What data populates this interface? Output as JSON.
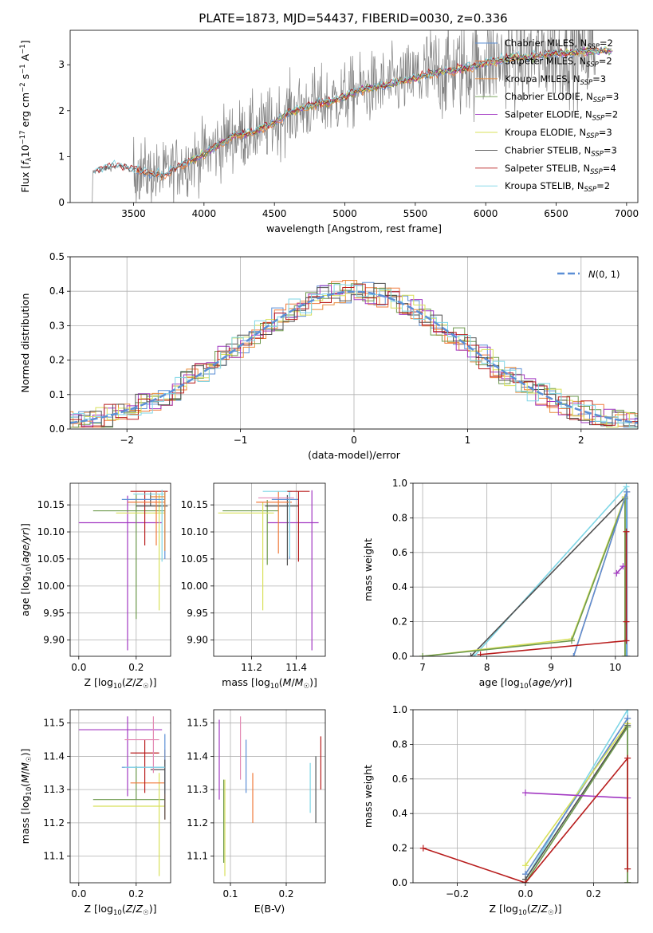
{
  "title": "PLATE=1873, MJD=54437, FIBERID=0030, z=0.336",
  "colors": {
    "Chabrier MILES": "#5b8fd6",
    "Salpeter MILES": "#f07a3b",
    "Kroupa MILES": "#e88a3a",
    "Chabrier ELODIE": "#6e9a4e",
    "Salpeter ELODIE": "#a238c2",
    "Kroupa ELODIE": "#d8e05a",
    "Chabrier STELIB": "#505050",
    "Salpeter STELIB": "#b81c1c",
    "Kroupa STELIB": "#7ed6e6",
    "data": "#808080",
    "normal": "#5b8fd6",
    "extra_pink": "#e38ab4"
  },
  "chart_data": [
    {
      "id": "spectrum",
      "type": "line",
      "xlabel": "wavelength [Angstrom, rest frame]",
      "ylabel": "Flux [f_λ 10^-17 erg cm^-2 s^-1 A^-1]",
      "xlim": [
        3050,
        7080
      ],
      "ylim": [
        0,
        3.75
      ],
      "xticks": [
        3500,
        4000,
        4500,
        5000,
        5500,
        6000,
        6500,
        7000
      ],
      "yticks": [
        0,
        1,
        2,
        3
      ],
      "grid": false,
      "legend": "top-right",
      "legend_entries": [
        {
          "base": "Chabrier MILES, N",
          "sub": "SSP",
          "tail": "=2"
        },
        {
          "base": "Salpeter MILES, N",
          "sub": "SSP",
          "tail": "=2"
        },
        {
          "base": "Kroupa MILES, N",
          "sub": "SSP",
          "tail": "=3"
        },
        {
          "base": "Chabrier ELODIE, N",
          "sub": "SSP",
          "tail": "=3"
        },
        {
          "base": "Salpeter ELODIE, N",
          "sub": "SSP",
          "tail": "=2"
        },
        {
          "base": "Kroupa ELODIE, N",
          "sub": "SSP",
          "tail": "=3"
        },
        {
          "base": "Chabrier STELIB, N",
          "sub": "SSP",
          "tail": "=3"
        },
        {
          "base": "Salpeter STELIB, N",
          "sub": "SSP",
          "tail": "=4"
        },
        {
          "base": "Kroupa STELIB, N",
          "sub": "SSP",
          "tail": "=2"
        }
      ],
      "model_continuum": {
        "x": [
          3200,
          3300,
          3400,
          3500,
          3600,
          3700,
          3800,
          3900,
          4000,
          4100,
          4200,
          4300,
          4400,
          4500,
          4600,
          4700,
          4800,
          4900,
          5000,
          5100,
          5200,
          5300,
          5400,
          5500,
          5600,
          5700,
          5800,
          5900,
          6000,
          6100,
          6200,
          6300,
          6400,
          6500,
          6600,
          6700,
          6800,
          6900
        ],
        "y": [
          0.65,
          0.75,
          0.78,
          0.72,
          0.65,
          0.58,
          0.75,
          0.9,
          1.05,
          1.25,
          1.45,
          1.5,
          1.6,
          1.75,
          1.95,
          2.05,
          2.15,
          2.2,
          2.3,
          2.45,
          2.5,
          2.55,
          2.65,
          2.7,
          2.8,
          2.85,
          2.9,
          2.95,
          3.05,
          3.1,
          3.15,
          3.15,
          3.2,
          3.25,
          3.25,
          3.3,
          3.3,
          3.3
        ]
      },
      "data_range": [
        3200,
        6780
      ]
    },
    {
      "id": "residuals",
      "type": "bar",
      "xlabel": "(data-model)/error",
      "ylabel": "Normed distribution",
      "xlim": [
        -2.5,
        2.5
      ],
      "ylim": [
        0,
        0.5
      ],
      "xticks": [
        -2,
        -1,
        0,
        1,
        2
      ],
      "yticks": [
        0.0,
        0.1,
        0.2,
        0.3,
        0.4,
        0.5
      ],
      "grid": true,
      "legend": "top-right",
      "legend_label": "N(0,1)",
      "bin_width": 0.1,
      "normal": {
        "mean": 0,
        "sigma": 1
      }
    },
    {
      "id": "age-vs-Z",
      "type": "scatter",
      "xlabel": "Z [log10(Z/Z☉)]",
      "ylabel": "age  [log10(age/yr)]",
      "xlim": [
        -0.03,
        0.32
      ],
      "ylim": [
        9.87,
        10.19
      ],
      "xticks": [
        0.0,
        0.2
      ],
      "yticks": [
        9.9,
        9.95,
        10.0,
        10.05,
        10.1,
        10.15
      ],
      "grid": true,
      "points": [
        {
          "model": "Salpeter ELODIE",
          "x": 0.17,
          "xerr": [
            0.17,
            0.12
          ],
          "y": 10.117,
          "yerr": [
            0.236,
            0.05
          ]
        },
        {
          "model": "Chabrier ELODIE",
          "x": 0.2,
          "xerr": [
            0.15,
            0.1
          ],
          "y": 10.139,
          "yerr": [
            0.2,
            0.03
          ]
        },
        {
          "model": "Kroupa ELODIE",
          "x": 0.28,
          "xerr": [
            0.15,
            0.02
          ],
          "y": 10.135,
          "yerr": [
            0.18,
            0.035
          ]
        },
        {
          "model": "Salpeter STELIB",
          "x": 0.23,
          "xerr": [
            0.05,
            0.08
          ],
          "y": 10.175,
          "yerr": [
            0.1,
            0.0
          ]
        },
        {
          "model": "Chabrier STELIB",
          "x": 0.25,
          "xerr": [
            0.05,
            0.06
          ],
          "y": 10.148,
          "yerr": [
            0.0,
            0.025
          ]
        },
        {
          "model": "Salpeter MILES",
          "x": 0.27,
          "xerr": [
            0.1,
            0.03
          ],
          "y": 10.155,
          "yerr": [
            0.08,
            0.02
          ]
        },
        {
          "model": "Chabrier MILES",
          "x": 0.3,
          "xerr": [
            0.15,
            0.0
          ],
          "y": 10.16,
          "yerr": [
            0.11,
            0.015
          ]
        },
        {
          "model": "Kroupa STELIB",
          "x": 0.29,
          "xerr": [
            0.1,
            0.01
          ],
          "y": 10.17,
          "yerr": [
            0.125,
            0.008
          ]
        },
        {
          "model": "Kroupa MILES",
          "x": 0.3,
          "xerr": [
            0.05,
            0.0
          ],
          "y": 10.165,
          "yerr": [
            0.1,
            0.01
          ]
        }
      ]
    },
    {
      "id": "age-vs-mass",
      "type": "scatter",
      "xlabel": "mass [log10(M/M☉)]",
      "ylabel": "",
      "xlim": [
        11.03,
        11.53
      ],
      "ylim": [
        9.87,
        10.19
      ],
      "xticks": [
        11.2,
        11.4
      ],
      "yticks": [
        9.9,
        9.95,
        10.0,
        10.05,
        10.1,
        10.15
      ],
      "grid": true,
      "points": [
        {
          "model": "Salpeter ELODIE",
          "x": 11.47,
          "xerr": [
            0.2,
            0.03
          ],
          "y": 10.117,
          "yerr": [
            0.236,
            0.06
          ]
        },
        {
          "model": "Chabrier ELODIE",
          "x": 11.27,
          "xerr": [
            0.2,
            0.05
          ],
          "y": 10.139,
          "yerr": [
            0.1,
            0.02
          ]
        },
        {
          "model": "Kroupa ELODIE",
          "x": 11.25,
          "xerr": [
            0.2,
            0.05
          ],
          "y": 10.135,
          "yerr": [
            0.18,
            0.02
          ]
        },
        {
          "model": "Chabrier STELIB",
          "x": 11.36,
          "xerr": [
            0.1,
            0.05
          ],
          "y": 10.148,
          "yerr": [
            0.11,
            0.02
          ]
        },
        {
          "model": "Salpeter MILES",
          "x": 11.32,
          "xerr": [
            0.1,
            0.06
          ],
          "y": 10.155,
          "yerr": [
            0.095,
            0.02
          ]
        },
        {
          "model": "Chabrier MILES",
          "x": 11.37,
          "xerr": [
            0.08,
            0.04
          ],
          "y": 10.16,
          "yerr": [
            0.11,
            0.015
          ]
        },
        {
          "model": "Kroupa STELIB",
          "x": 11.37,
          "xerr": [
            0.12,
            0.01
          ],
          "y": 10.175,
          "yerr": [
            0.12,
            0.0
          ]
        },
        {
          "model": "Salpeter STELIB",
          "x": 11.41,
          "xerr": [
            0.05,
            0.05
          ],
          "y": 10.175,
          "yerr": [
            0.13,
            0.0
          ]
        },
        {
          "model": "Extra",
          "x": 11.33,
          "xerr": [
            0.1,
            0.06
          ],
          "y": 10.163,
          "yerr": [
            0.0,
            0.0
          ]
        }
      ]
    },
    {
      "id": "weight-vs-age",
      "type": "line",
      "xlabel": "age  [log10(age/yr)]",
      "ylabel": "mass weight",
      "xlim": [
        6.85,
        10.35
      ],
      "ylim": [
        0,
        1.0
      ],
      "xticks": [
        7,
        8,
        9,
        10
      ],
      "yticks": [
        0.0,
        0.2,
        0.4,
        0.6,
        0.8,
        1.0
      ],
      "grid": true,
      "series": [
        {
          "model": "Kroupa STELIB",
          "x": [
            7.8,
            10.17,
            10.17
          ],
          "y": [
            0.0,
            0.98,
            0.0
          ]
        },
        {
          "model": "Chabrier STELIB",
          "x": [
            7.75,
            10.15,
            10.15
          ],
          "y": [
            0.0,
            0.92,
            0.0
          ]
        },
        {
          "model": "Kroupa ELODIE",
          "x": [
            7.0,
            9.32,
            10.15,
            10.15
          ],
          "y": [
            0.0,
            0.1,
            0.92,
            0.0
          ]
        },
        {
          "model": "Chabrier ELODIE",
          "x": [
            7.0,
            9.32,
            10.15,
            10.15
          ],
          "y": [
            0.0,
            0.09,
            0.91,
            0.0
          ]
        },
        {
          "model": "Salpeter MILES",
          "x": [
            9.35,
            10.18,
            10.18
          ],
          "y": [
            0.0,
            0.95,
            0.0
          ]
        },
        {
          "model": "Chabrier MILES",
          "x": [
            9.35,
            10.18,
            10.18
          ],
          "y": [
            0.0,
            0.95,
            0.0
          ]
        },
        {
          "model": "Salpeter ELODIE",
          "x": [
            10.02,
            10.12
          ],
          "y": [
            0.48,
            0.52
          ]
        },
        {
          "model": "Salpeter STELIB",
          "x": [
            7.9,
            10.17,
            10.17,
            10.17
          ],
          "y": [
            0.01,
            0.09,
            0.72,
            0.2
          ]
        }
      ]
    },
    {
      "id": "mass-vs-Z",
      "type": "scatter",
      "xlabel": "Z [log10(Z/Z☉)]",
      "ylabel": "mass [log10(M/M☉)]",
      "xlim": [
        -0.03,
        0.32
      ],
      "ylim": [
        11.02,
        11.54
      ],
      "xticks": [
        0.0,
        0.2
      ],
      "yticks": [
        11.1,
        11.2,
        11.3,
        11.4,
        11.5
      ],
      "grid": true,
      "points": [
        {
          "model": "Salpeter ELODIE",
          "x": 0.17,
          "xerr": [
            0.17,
            0.12
          ],
          "y": 11.48,
          "yerr": [
            0.2,
            0.04
          ]
        },
        {
          "model": "Chabrier ELODIE",
          "x": 0.2,
          "xerr": [
            0.15,
            0.1
          ],
          "y": 11.27,
          "yerr": [
            0.0,
            0.1
          ]
        },
        {
          "model": "Kroupa ELODIE",
          "x": 0.28,
          "xerr": [
            0.23,
            0.02
          ],
          "y": 11.25,
          "yerr": [
            0.21,
            0.1
          ]
        },
        {
          "model": "Salpeter MILES",
          "x": 0.3,
          "xerr": [
            0.12,
            0.0
          ],
          "y": 11.32,
          "yerr": [
            0.11,
            0.1
          ]
        },
        {
          "model": "Chabrier MILES",
          "x": 0.3,
          "xerr": [
            0.15,
            0.0
          ],
          "y": 11.367,
          "yerr": [
            0.08,
            0.1
          ]
        },
        {
          "model": "Chabrier STELIB",
          "x": 0.3,
          "xerr": [
            0.05,
            0.0
          ],
          "y": 11.36,
          "yerr": [
            0.15,
            0.03
          ]
        },
        {
          "model": "Salpeter STELIB",
          "x": 0.23,
          "xerr": [
            0.05,
            0.05
          ],
          "y": 11.41,
          "yerr": [
            0.12,
            0.04
          ]
        },
        {
          "model": "Extra",
          "x": 0.26,
          "xerr": [
            0.1,
            0.02
          ],
          "y": 11.45,
          "yerr": [
            0.1,
            0.07
          ]
        },
        {
          "model": "Kroupa STELIB",
          "x": 0.26,
          "xerr": [
            0.1,
            0.04
          ],
          "y": 11.367,
          "yerr": [
            0.0,
            0.0
          ]
        }
      ]
    },
    {
      "id": "mass-vs-ebv",
      "type": "scatter",
      "xlabel": "E(B-V)",
      "ylabel": "",
      "xlim": [
        0.07,
        0.27
      ],
      "ylim": [
        11.02,
        11.54
      ],
      "xticks": [
        0.1,
        0.2
      ],
      "yticks": [
        11.1,
        11.2,
        11.3,
        11.4,
        11.5
      ],
      "grid": true,
      "points": [
        {
          "model": "Salpeter ELODIE",
          "x": 0.08,
          "y": 11.39,
          "yerr": [
            0.12,
            0.12
          ]
        },
        {
          "model": "Kroupa ELODIE",
          "x": 0.09,
          "y": 11.19,
          "yerr": [
            0.15,
            0.14
          ]
        },
        {
          "model": "Chabrier ELODIE",
          "x": 0.088,
          "y": 11.2,
          "yerr": [
            0.12,
            0.13
          ]
        },
        {
          "model": "Extra",
          "x": 0.118,
          "y": 11.43,
          "yerr": [
            0.1,
            0.09
          ]
        },
        {
          "model": "Chabrier MILES",
          "x": 0.128,
          "y": 11.37,
          "yerr": [
            0.08,
            0.08
          ]
        },
        {
          "model": "Salpeter MILES",
          "x": 0.14,
          "y": 11.28,
          "yerr": [
            0.08,
            0.07
          ]
        },
        {
          "model": "Kroupa STELIB",
          "x": 0.243,
          "y": 11.3,
          "yerr": [
            0.07,
            0.08
          ]
        },
        {
          "model": "Chabrier STELIB",
          "x": 0.253,
          "y": 11.3,
          "yerr": [
            0.1,
            0.1
          ]
        },
        {
          "model": "Salpeter STELIB",
          "x": 0.262,
          "y": 11.38,
          "yerr": [
            0.08,
            0.08
          ]
        }
      ]
    },
    {
      "id": "weight-vs-Z",
      "type": "line",
      "xlabel": "Z [log10(Z/Z☉)]",
      "ylabel": "mass weight",
      "xlim": [
        -0.33,
        0.33
      ],
      "ylim": [
        0,
        1.0
      ],
      "xticks": [
        -0.2,
        0.0,
        0.2
      ],
      "yticks": [
        0.0,
        0.2,
        0.4,
        0.6,
        0.8,
        1.0
      ],
      "grid": true,
      "series": [
        {
          "model": "Kroupa STELIB",
          "x": [
            0.0,
            0.3,
            0.3
          ],
          "y": [
            0.02,
            1.0,
            0.0
          ]
        },
        {
          "model": "Salpeter MILES",
          "x": [
            0.0,
            0.3,
            0.3
          ],
          "y": [
            0.05,
            0.95,
            0.0
          ]
        },
        {
          "model": "Chabrier MILES",
          "x": [
            0.0,
            0.3,
            0.3
          ],
          "y": [
            0.05,
            0.95,
            0.0
          ]
        },
        {
          "model": "Kroupa ELODIE",
          "x": [
            0.0,
            0.3,
            0.3
          ],
          "y": [
            0.1,
            0.92,
            0.0
          ]
        },
        {
          "model": "Chabrier STELIB",
          "x": [
            0.0,
            0.3,
            0.3
          ],
          "y": [
            0.02,
            0.91,
            0.0
          ]
        },
        {
          "model": "Chabrier ELODIE",
          "x": [
            0.0,
            0.3,
            0.3
          ],
          "y": [
            0.0,
            0.9,
            0.0
          ]
        },
        {
          "model": "Salpeter ELODIE",
          "x": [
            0.0,
            0.3
          ],
          "y": [
            0.52,
            0.49
          ]
        },
        {
          "model": "Salpeter STELIB",
          "x": [
            -0.3,
            0.0,
            0.3,
            0.3
          ],
          "y": [
            0.2,
            0.0,
            0.72,
            0.08
          ]
        }
      ]
    }
  ]
}
